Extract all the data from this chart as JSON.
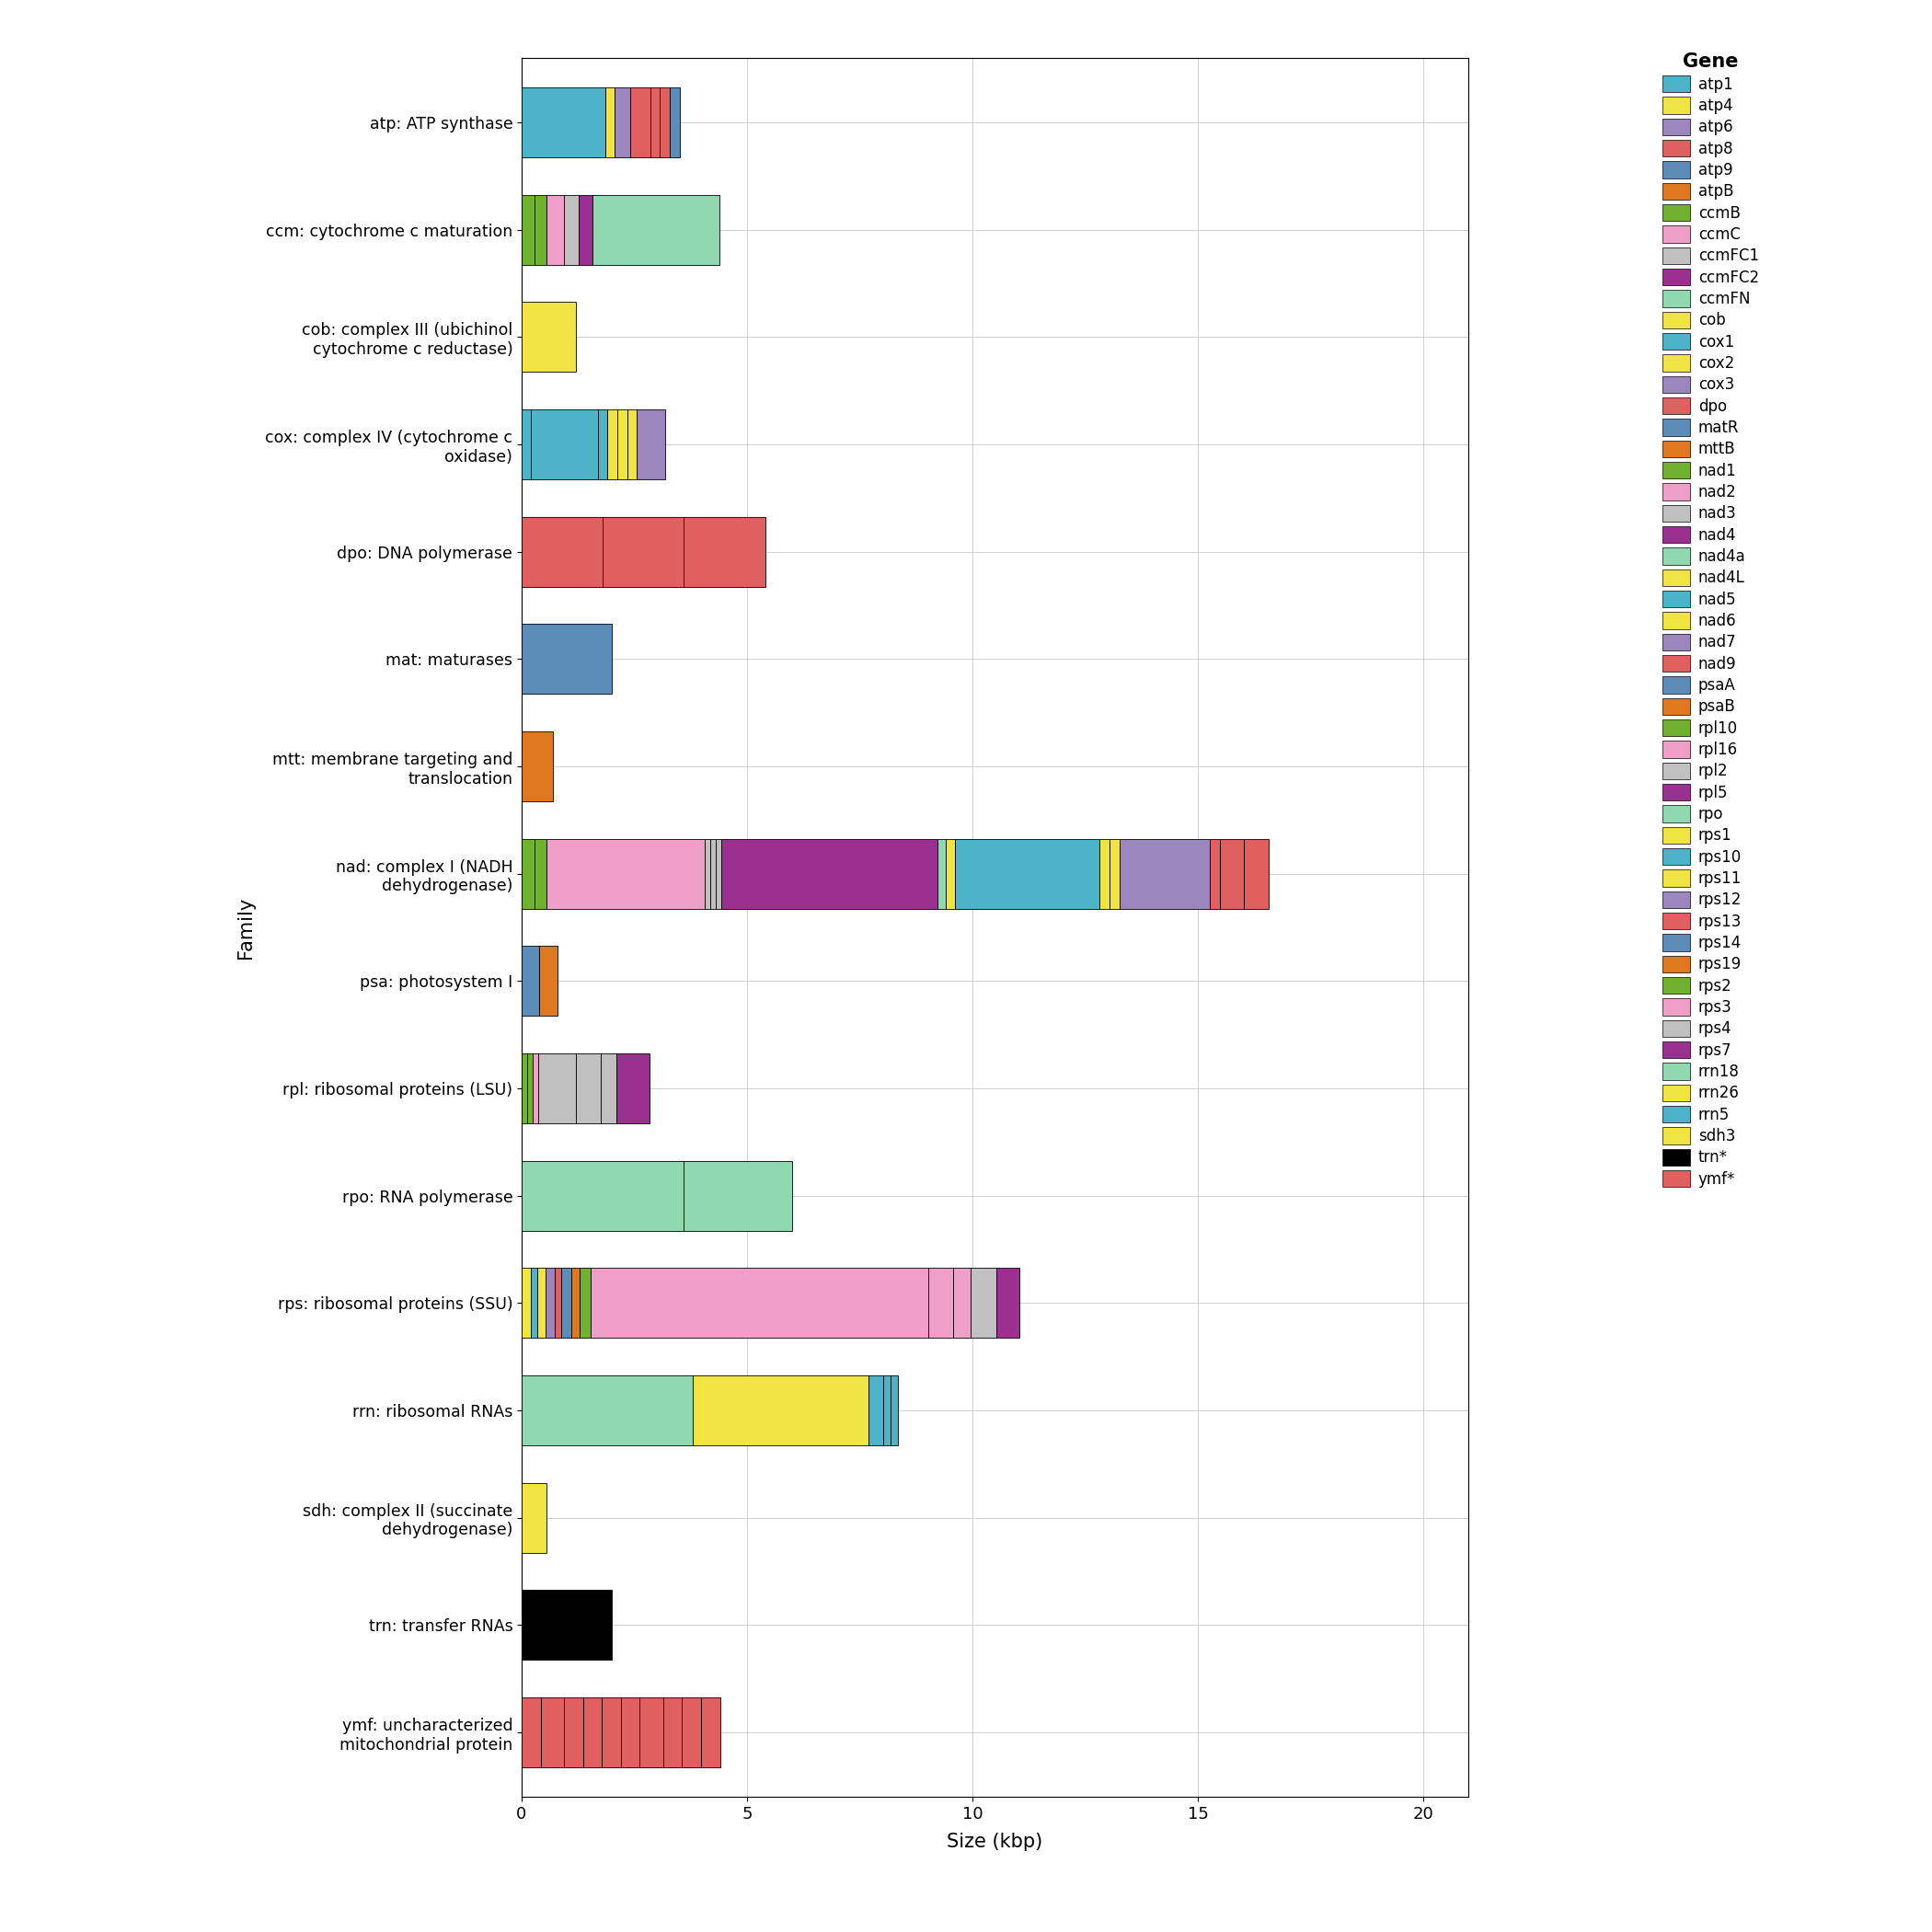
{
  "xlabel": "Size (kbp)",
  "ylabel": "Family",
  "legend_title": "Gene",
  "xlim": [
    0,
    21
  ],
  "xticks": [
    0,
    5,
    10,
    15,
    20
  ],
  "families": [
    "atp: ATP synthase",
    "ccm: cytochrome c maturation",
    "cob: complex III (ubichinol\ncytochrome c reductase)",
    "cox: complex IV (cytochrome c\noxidase)",
    "dpo: DNA polymerase",
    "mat: maturases",
    "mtt: membrane targeting and\ntranslocation",
    "nad: complex I (NADH\ndehydrogenase)",
    "psa: photosystem I",
    "rpl: ribosomal proteins (LSU)",
    "rpo: RNA polymerase",
    "rps: ribosomal proteins (SSU)",
    "rrn: ribosomal RNAs",
    "sdh: complex II (succinate\ndehydrogenase)",
    "trn: transfer RNAs",
    "ymf: uncharacterized\nmitochondrial protein"
  ],
  "gene_colors": {
    "atp1": "#4DB3C8",
    "atp4": "#F0E442",
    "atp6": "#9B86BD",
    "atp8": "#E06060",
    "atp9": "#5B8DB8",
    "atpB": "#E07820",
    "ccmB": "#70B230",
    "ccmC": "#F0A0C8",
    "ccmFC1": "#C0C0C0",
    "ccmFC2": "#9B3090",
    "ccmFN": "#90D8B0",
    "cob": "#F0E442",
    "cox1": "#4DB3C8",
    "cox2": "#F0E442",
    "cox3": "#9B86BD",
    "dpo": "#E06060",
    "matR": "#5B8DB8",
    "mttB": "#E07820",
    "nad1": "#70B230",
    "nad2": "#F0A0C8",
    "nad3": "#C0C0C0",
    "nad4": "#9B3090",
    "nad4a": "#90D8B0",
    "nad4L": "#F0E442",
    "nad5": "#4DB3C8",
    "nad6": "#F0E442",
    "nad7": "#9B86BD",
    "nad9": "#E06060",
    "psaA": "#5B8DB8",
    "psaB": "#E07820",
    "rpl10": "#70B230",
    "rpl16": "#F0A0C8",
    "rpl2": "#C0C0C0",
    "rpl5": "#9B3090",
    "rpo": "#90D8B0",
    "rps1": "#F0E442",
    "rps10": "#4DB3C8",
    "rps11": "#F0E442",
    "rps12": "#9B86BD",
    "rps13": "#E06060",
    "rps14": "#5B8DB8",
    "rps19": "#E07820",
    "rps2": "#70B230",
    "rps3": "#F0A0C8",
    "rps4": "#C0C0C0",
    "rps7": "#9B3090",
    "rrn18": "#90D8B0",
    "rrn26": "#F0E442",
    "rrn5": "#4DB3C8",
    "sdh3": "#F0E442",
    "trn*": "#000000",
    "ymf*": "#E06060"
  },
  "legend_genes": [
    "atp1",
    "atp4",
    "atp6",
    "atp8",
    "atp9",
    "atpB",
    "ccmB",
    "ccmC",
    "ccmFC1",
    "ccmFC2",
    "ccmFN",
    "cob",
    "cox1",
    "cox2",
    "cox3",
    "dpo",
    "matR",
    "mttB",
    "nad1",
    "nad2",
    "nad3",
    "nad4",
    "nad4a",
    "nad4L",
    "nad5",
    "nad6",
    "nad7",
    "nad9",
    "psaA",
    "psaB",
    "rpl10",
    "rpl16",
    "rpl2",
    "rpl5",
    "rpo",
    "rps1",
    "rps10",
    "rps11",
    "rps12",
    "rps13",
    "rps14",
    "rps19",
    "rps2",
    "rps3",
    "rps4",
    "rps7",
    "rrn18",
    "rrn26",
    "rrn5",
    "sdh3",
    "trn*",
    "ymf*"
  ],
  "bar_data": [
    {
      "family": "atp: ATP synthase",
      "segments": [
        {
          "gene": "atp1",
          "size": 1.85
        },
        {
          "gene": "atp4",
          "size": 0.22
        },
        {
          "gene": "atp6",
          "size": 0.33
        },
        {
          "gene": "atp8",
          "size": 0.45
        },
        {
          "gene": "atp8",
          "size": 0.22
        },
        {
          "gene": "atp8",
          "size": 0.22
        },
        {
          "gene": "atp9",
          "size": 0.21
        }
      ]
    },
    {
      "family": "ccm: cytochrome c maturation",
      "segments": [
        {
          "gene": "ccmB",
          "size": 0.28
        },
        {
          "gene": "ccmB",
          "size": 0.28
        },
        {
          "gene": "ccmC",
          "size": 0.38
        },
        {
          "gene": "ccmFC1",
          "size": 0.32
        },
        {
          "gene": "ccmFC2",
          "size": 0.32
        },
        {
          "gene": "ccmFN",
          "size": 2.8
        }
      ]
    },
    {
      "family": "cob: complex III (ubichinol\ncytochrome c reductase)",
      "segments": [
        {
          "gene": "cob",
          "size": 1.2
        }
      ]
    },
    {
      "family": "cox: complex IV (cytochrome c\noxidase)",
      "segments": [
        {
          "gene": "cox1",
          "size": 0.2
        },
        {
          "gene": "cox1",
          "size": 1.5
        },
        {
          "gene": "cox1",
          "size": 0.2
        },
        {
          "gene": "cox2",
          "size": 0.22
        },
        {
          "gene": "cox2",
          "size": 0.22
        },
        {
          "gene": "cox2",
          "size": 0.22
        },
        {
          "gene": "cox3",
          "size": 0.62
        }
      ]
    },
    {
      "family": "dpo: DNA polymerase",
      "segments": [
        {
          "gene": "dpo",
          "size": 1.8
        },
        {
          "gene": "dpo",
          "size": 1.8
        },
        {
          "gene": "dpo",
          "size": 1.8
        }
      ]
    },
    {
      "family": "mat: maturases",
      "segments": [
        {
          "gene": "matR",
          "size": 2.0
        }
      ]
    },
    {
      "family": "mtt: membrane targeting and\ntranslocation",
      "segments": [
        {
          "gene": "mttB",
          "size": 0.7
        }
      ]
    },
    {
      "family": "nad: complex I (NADH\ndehydrogenase)",
      "segments": [
        {
          "gene": "nad1",
          "size": 0.28
        },
        {
          "gene": "nad1",
          "size": 0.28
        },
        {
          "gene": "nad2",
          "size": 3.5
        },
        {
          "gene": "nad3",
          "size": 0.12
        },
        {
          "gene": "nad3",
          "size": 0.12
        },
        {
          "gene": "nad3",
          "size": 0.12
        },
        {
          "gene": "nad4",
          "size": 4.8
        },
        {
          "gene": "nad4a",
          "size": 0.18
        },
        {
          "gene": "nad4L",
          "size": 0.22
        },
        {
          "gene": "nad5",
          "size": 3.2
        },
        {
          "gene": "nad6",
          "size": 0.22
        },
        {
          "gene": "nad6",
          "size": 0.22
        },
        {
          "gene": "nad7",
          "size": 2.0
        },
        {
          "gene": "nad9",
          "size": 0.22
        },
        {
          "gene": "nad9",
          "size": 0.55
        },
        {
          "gene": "nad9",
          "size": 0.55
        }
      ]
    },
    {
      "family": "psa: photosystem I",
      "segments": [
        {
          "gene": "psaA",
          "size": 0.38
        },
        {
          "gene": "psaB",
          "size": 0.42
        }
      ]
    },
    {
      "family": "rpl: ribosomal proteins (LSU)",
      "segments": [
        {
          "gene": "rpl10",
          "size": 0.12
        },
        {
          "gene": "rpl10",
          "size": 0.12
        },
        {
          "gene": "rpl16",
          "size": 0.12
        },
        {
          "gene": "rpl2",
          "size": 0.85
        },
        {
          "gene": "rpl2",
          "size": 0.55
        },
        {
          "gene": "rpl2",
          "size": 0.35
        },
        {
          "gene": "rpl5",
          "size": 0.72
        }
      ]
    },
    {
      "family": "rpo: RNA polymerase",
      "segments": [
        {
          "gene": "rpo",
          "size": 3.6
        },
        {
          "gene": "rpo",
          "size": 2.4
        }
      ]
    },
    {
      "family": "rps: ribosomal proteins (SSU)",
      "segments": [
        {
          "gene": "rps1",
          "size": 0.2
        },
        {
          "gene": "rps10",
          "size": 0.15
        },
        {
          "gene": "rps11",
          "size": 0.18
        },
        {
          "gene": "rps12",
          "size": 0.2
        },
        {
          "gene": "rps13",
          "size": 0.15
        },
        {
          "gene": "rps14",
          "size": 0.22
        },
        {
          "gene": "rps19",
          "size": 0.18
        },
        {
          "gene": "rps2",
          "size": 0.25
        },
        {
          "gene": "rps3",
          "size": 7.5
        },
        {
          "gene": "rps3",
          "size": 0.55
        },
        {
          "gene": "rps3",
          "size": 0.38
        },
        {
          "gene": "rps4",
          "size": 0.58
        },
        {
          "gene": "rps7",
          "size": 0.5
        }
      ]
    },
    {
      "family": "rrn: ribosomal RNAs",
      "segments": [
        {
          "gene": "rrn18",
          "size": 3.8
        },
        {
          "gene": "rrn26",
          "size": 3.9
        },
        {
          "gene": "rrn5",
          "size": 0.32
        },
        {
          "gene": "rrn5",
          "size": 0.16
        },
        {
          "gene": "rrn5",
          "size": 0.16
        }
      ]
    },
    {
      "family": "sdh: complex II (succinate\ndehydrogenase)",
      "segments": [
        {
          "gene": "sdh3",
          "size": 0.55
        }
      ]
    },
    {
      "family": "trn: transfer RNAs",
      "segments": [
        {
          "gene": "trn*",
          "size": 2.0
        }
      ]
    },
    {
      "family": "ymf: uncharacterized\nmitochondrial protein",
      "segments": [
        {
          "gene": "ymf*",
          "size": 0.42
        },
        {
          "gene": "ymf*",
          "size": 0.52
        },
        {
          "gene": "ymf*",
          "size": 0.42
        },
        {
          "gene": "ymf*",
          "size": 0.42
        },
        {
          "gene": "ymf*",
          "size": 0.42
        },
        {
          "gene": "ymf*",
          "size": 0.42
        },
        {
          "gene": "ymf*",
          "size": 0.52
        },
        {
          "gene": "ymf*",
          "size": 0.42
        },
        {
          "gene": "ymf*",
          "size": 0.42
        },
        {
          "gene": "ymf*",
          "size": 0.42
        }
      ]
    }
  ]
}
